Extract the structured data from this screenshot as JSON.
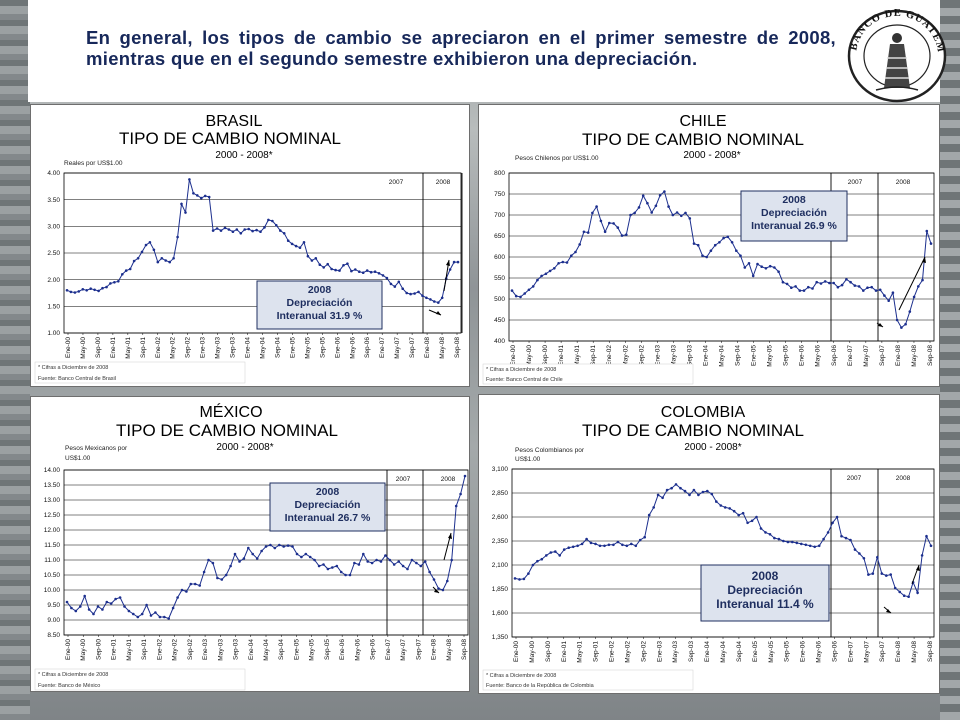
{
  "slide": {
    "title": "En general, los tipos de cambio se apreciaron en el primer semestre de 2008, mientras que en el segundo semestre exhibieron una depreciación.",
    "logo_text": "BANCO DE GUATEMALA"
  },
  "colors": {
    "line": "#1c2f8e",
    "title_text": "#17285a",
    "box_fill": "#dde3ee",
    "box_border": "#1f2f60"
  },
  "chart_data": [
    {
      "id": "brasil",
      "type": "line",
      "country": "BRASIL",
      "subtitle": "TIPO DE CAMBIO NOMINAL",
      "period": "2000 - 2008*",
      "ylabel": "Reales por US$1.00",
      "ylim": [
        1.0,
        4.0
      ],
      "yticks": [
        "1.00",
        "1.50",
        "2.00",
        "2.50",
        "3.00",
        "3.50",
        "4.00"
      ],
      "xticks": [
        "Ene-00",
        "May-00",
        "Sep-00",
        "Ene-01",
        "May-01",
        "Sep-01",
        "Ene-02",
        "May-02",
        "Sep-02",
        "Ene-03",
        "May-03",
        "Sep-03",
        "Ene-04",
        "May-04",
        "Sep-04",
        "Ene-05",
        "May-05",
        "Sep-05",
        "Ene-06",
        "May-06",
        "Sep-06",
        "Ene-07",
        "May-07",
        "Sep-07",
        "Ene-08",
        "May-08",
        "Sep-08"
      ],
      "year_labels": [
        "2007",
        "2008"
      ],
      "box": {
        "year": "2008",
        "line1": "Depreciación",
        "line2": "Interanual  31.9 %"
      },
      "note1": "* Cifras a Diciembre de 2008",
      "note2": "Fuente: Banco Central de Brasil",
      "values": [
        1.8,
        1.77,
        1.76,
        1.78,
        1.82,
        1.8,
        1.83,
        1.81,
        1.79,
        1.84,
        1.86,
        1.93,
        1.95,
        1.97,
        2.1,
        2.17,
        2.2,
        2.35,
        2.4,
        2.52,
        2.65,
        2.7,
        2.56,
        2.33,
        2.4,
        2.36,
        2.33,
        2.4,
        2.8,
        3.42,
        3.26,
        3.88,
        3.62,
        3.58,
        3.53,
        3.57,
        3.55,
        2.92,
        2.96,
        2.92,
        2.97,
        2.94,
        2.9,
        2.94,
        2.87,
        2.94,
        2.95,
        2.91,
        2.93,
        2.9,
        2.98,
        3.12,
        3.1,
        3.02,
        2.92,
        2.87,
        2.73,
        2.67,
        2.63,
        2.6,
        2.7,
        2.44,
        2.36,
        2.4,
        2.28,
        2.23,
        2.29,
        2.2,
        2.18,
        2.17,
        2.27,
        2.3,
        2.16,
        2.19,
        2.15,
        2.13,
        2.17,
        2.14,
        2.15,
        2.12,
        2.08,
        2.03,
        1.92,
        1.87,
        1.96,
        1.83,
        1.75,
        1.73,
        1.74,
        1.77,
        1.7,
        1.66,
        1.63,
        1.59,
        1.57,
        1.66,
        2.02,
        2.19,
        2.33,
        2.33
      ]
    },
    {
      "id": "chile",
      "type": "line",
      "country": "CHILE",
      "subtitle": "TIPO DE CAMBIO NOMINAL",
      "period": "2000 - 2008*",
      "ylabel": "Pesos Chilenos por US$1.00",
      "ylim": [
        400,
        800
      ],
      "yticks": [
        "400",
        "450",
        "500",
        "550",
        "600",
        "650",
        "700",
        "750",
        "800"
      ],
      "xticks": [
        "Ene-00",
        "May-00",
        "Sep-00",
        "Ene-01",
        "May-01",
        "Sep-01",
        "Ene-02",
        "May-02",
        "Sep-02",
        "Ene-03",
        "May-03",
        "Sep-03",
        "Ene-04",
        "May-04",
        "Sep-04",
        "Ene-05",
        "May-05",
        "Sep-05",
        "Ene-06",
        "May-06",
        "Sep-06",
        "Ene-07",
        "May-07",
        "Sep-07",
        "Ene-08",
        "May-08",
        "Sep-08"
      ],
      "year_labels": [
        "2007",
        "2008"
      ],
      "box": {
        "year": "2008",
        "line1": "Depreciación",
        "line2": "Interanual  26.9 %"
      },
      "note1": "* Cifras a Diciembre de 2008",
      "note2": "Fuente: Banco Central de Chile",
      "values": [
        520,
        507,
        505,
        513,
        522,
        530,
        545,
        555,
        560,
        567,
        573,
        585,
        588,
        587,
        603,
        612,
        630,
        660,
        658,
        705,
        720,
        686,
        660,
        681,
        680,
        670,
        651,
        653,
        700,
        705,
        718,
        746,
        728,
        706,
        722,
        747,
        756,
        720,
        700,
        706,
        698,
        705,
        692,
        632,
        628,
        603,
        600,
        615,
        628,
        635,
        645,
        648,
        635,
        615,
        603,
        575,
        585,
        555,
        583,
        577,
        573,
        578,
        575,
        565,
        540,
        536,
        527,
        530,
        520,
        520,
        528,
        525,
        540,
        537,
        542,
        538,
        538,
        528,
        533,
        547,
        540,
        532,
        530,
        520,
        527,
        528,
        520,
        522,
        508,
        496,
        515,
        450,
        432,
        440,
        470,
        505,
        530,
        545,
        662,
        632
      ]
    },
    {
      "id": "mexico",
      "type": "line",
      "country": "MÉXICO",
      "subtitle": "TIPO DE CAMBIO NOMINAL",
      "period": "2000 - 2008*",
      "ylabel": "Pesos Mexicanos por US$1.00",
      "ylim": [
        8.5,
        14.0
      ],
      "yticks": [
        "8.50",
        "9.00",
        "9.50",
        "10.00",
        "10.50",
        "11.00",
        "11.50",
        "12.00",
        "12.50",
        "13.00",
        "13.50",
        "14.00"
      ],
      "xticks": [
        "Ene-00",
        "May-00",
        "Sep-00",
        "Ene-01",
        "May-01",
        "Sep-01",
        "Ene-02",
        "May-02",
        "Sep-02",
        "Ene-03",
        "May-03",
        "Sep-03",
        "Ene-04",
        "May-04",
        "Sep-04",
        "Ene-05",
        "May-05",
        "Sep-05",
        "Ene-06",
        "May-06",
        "Sep-06",
        "Ene-07",
        "May-07",
        "Sep-07",
        "Ene-08",
        "May-08",
        "Sep-08"
      ],
      "year_labels": [
        "2007",
        "2008"
      ],
      "box": {
        "year": "2008",
        "line1": "Depreciación",
        "line2": "Interanual  26.7 %"
      },
      "note1": "* Cifras a Diciembre de 2008",
      "note2": "Fuente: Banco de México",
      "values": [
        9.6,
        9.4,
        9.3,
        9.45,
        9.8,
        9.35,
        9.2,
        9.45,
        9.35,
        9.6,
        9.55,
        9.7,
        9.75,
        9.45,
        9.3,
        9.2,
        9.1,
        9.2,
        9.5,
        9.15,
        9.25,
        9.1,
        9.1,
        9.05,
        9.4,
        9.75,
        10.0,
        9.95,
        10.2,
        10.2,
        10.15,
        10.6,
        11.0,
        10.9,
        10.4,
        10.35,
        10.5,
        10.8,
        11.2,
        10.95,
        11.05,
        11.4,
        11.2,
        11.05,
        11.3,
        11.45,
        11.5,
        11.4,
        11.5,
        11.45,
        11.48,
        11.45,
        11.2,
        11.1,
        11.2,
        11.1,
        11.0,
        10.8,
        10.85,
        10.7,
        10.75,
        10.8,
        10.6,
        10.5,
        10.5,
        10.9,
        10.85,
        11.2,
        10.95,
        10.9,
        11.0,
        10.95,
        11.15,
        11.0,
        10.85,
        10.95,
        10.8,
        10.7,
        11.0,
        10.9,
        10.8,
        10.95,
        10.6,
        10.35,
        10.05,
        10.0,
        10.3,
        11.0,
        12.8,
        13.2,
        13.8
      ]
    },
    {
      "id": "colombia",
      "type": "line",
      "country": "COLOMBIA",
      "subtitle": "TIPO DE CAMBIO NOMINAL",
      "period": "2000 - 2008*",
      "ylabel": "Pesos Colombianos por US$1.00",
      "ylim": [
        1350,
        3100
      ],
      "yticks": [
        "1,350",
        "1,600",
        "1,850",
        "2,100",
        "2,350",
        "2,600",
        "2,850",
        "3,100"
      ],
      "xticks": [
        "Ene-00",
        "May-00",
        "Sep-00",
        "Ene-01",
        "May-01",
        "Sep-01",
        "Ene-02",
        "May-02",
        "Sep-02",
        "Ene-03",
        "May-03",
        "Sep-03",
        "Ene-04",
        "May-04",
        "Sep-04",
        "Ene-05",
        "May-05",
        "Sep-05",
        "Ene-06",
        "May-06",
        "Sep-06",
        "Ene-07",
        "May-07",
        "Sep-07",
        "Ene-08",
        "May-08",
        "Sep-08"
      ],
      "year_labels": [
        "2007",
        "2008"
      ],
      "box": {
        "year": "2008",
        "line1": "Depreciación",
        "line2": "Interanual  11.4 %"
      },
      "note1": "* Cifras a Diciembre de 2008",
      "note2": "Fuente: Banco de la República de Colombia",
      "values": [
        1960,
        1950,
        1955,
        2010,
        2100,
        2140,
        2160,
        2200,
        2230,
        2240,
        2200,
        2260,
        2280,
        2290,
        2300,
        2320,
        2370,
        2330,
        2320,
        2300,
        2300,
        2310,
        2310,
        2340,
        2310,
        2300,
        2320,
        2300,
        2360,
        2390,
        2620,
        2700,
        2830,
        2800,
        2880,
        2900,
        2940,
        2900,
        2870,
        2830,
        2880,
        2830,
        2860,
        2870,
        2840,
        2760,
        2720,
        2700,
        2690,
        2660,
        2620,
        2640,
        2540,
        2560,
        2600,
        2480,
        2440,
        2420,
        2380,
        2370,
        2350,
        2340,
        2340,
        2330,
        2320,
        2310,
        2300,
        2290,
        2300,
        2370,
        2440,
        2540,
        2600,
        2400,
        2380,
        2360,
        2260,
        2220,
        2170,
        2000,
        2010,
        2180,
        2010,
        1990,
        2000,
        1860,
        1820,
        1780,
        1770,
        1920,
        1810,
        2200,
        2400,
        2300
      ]
    }
  ]
}
